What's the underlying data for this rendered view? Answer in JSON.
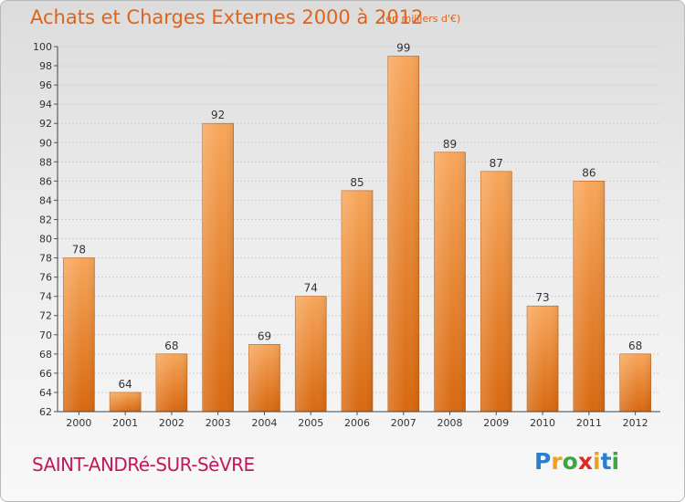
{
  "title": "Achats et Charges Externes 2000 à 2012",
  "subtitle": "(en milliers d'€)",
  "commune": "SAINT-ANDRé-SUR-SèVRE",
  "logo": {
    "letters": [
      "P",
      "r",
      "o",
      "x",
      "i",
      "t",
      "i"
    ],
    "colors": [
      "#2a7ed0",
      "#f0a020",
      "#3aa83a",
      "#e02a2a",
      "#f0a020",
      "#2a7ed0",
      "#3aa83a"
    ]
  },
  "colors": {
    "bar_top": "#f7a65a",
    "bar_bottom": "#d8680f",
    "accent": "#e06318"
  },
  "chart_data": {
    "type": "bar",
    "categories": [
      "2000",
      "2001",
      "2002",
      "2003",
      "2004",
      "2005",
      "2006",
      "2007",
      "2008",
      "2009",
      "2010",
      "2011",
      "2012"
    ],
    "values": [
      78,
      64,
      68,
      92,
      69,
      74,
      85,
      99,
      89,
      87,
      73,
      86,
      68
    ],
    "title": "Achats et Charges Externes 2000 à 2012",
    "xlabel": "",
    "ylabel": "",
    "ylim": [
      62,
      100
    ],
    "yticks": [
      62,
      64,
      66,
      68,
      70,
      72,
      74,
      76,
      78,
      80,
      82,
      84,
      86,
      88,
      90,
      92,
      94,
      96,
      98,
      100
    ],
    "grid": true
  }
}
